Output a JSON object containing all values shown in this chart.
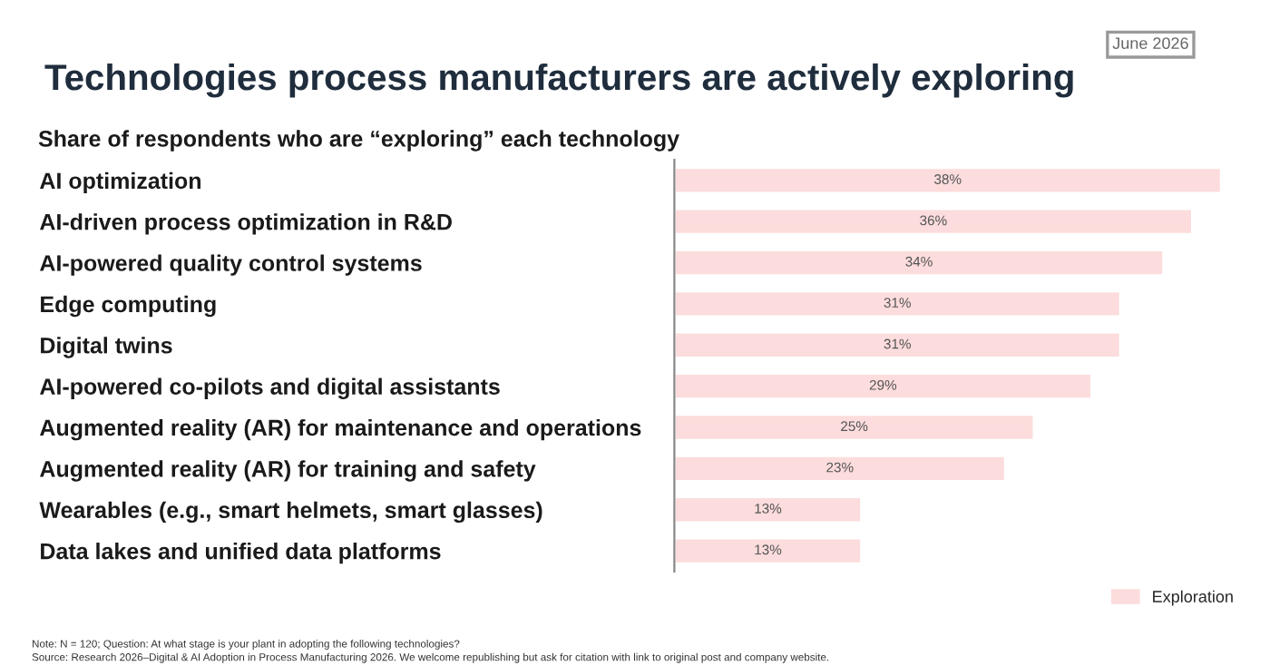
{
  "chart_data": {
    "type": "bar",
    "orientation": "horizontal",
    "title": "Technologies process manufacturers are actively exploring",
    "subtitle": "Share of respondents who are “exploring” each technology",
    "categories": [
      "AI optimization",
      "AI-driven process optimization in R&D",
      "AI-powered quality control systems",
      "Edge computing",
      "Digital twins",
      "AI-powered co-pilots and digital assistants",
      "Augmented reality (AR) for maintenance and operations",
      "Augmented reality (AR) for training and safety",
      "Wearables (e.g., smart helmets, smart glasses)",
      "Data lakes and unified data platforms"
    ],
    "series": [
      {
        "name": "Exploration",
        "color": "#fcdcdc",
        "values": [
          38,
          36,
          34,
          31,
          31,
          29,
          25,
          23,
          13,
          13
        ],
        "value_labels": [
          "38%",
          "36%",
          "34%",
          "31%",
          "31%",
          "29%",
          "25%",
          "23%",
          "13%",
          "13%"
        ]
      }
    ],
    "tick_labels": "y",
    "grid": false,
    "legend": "bottom right",
    "annotations": [
      "June 2026",
      "Note: N = 120; Question: At what stage is your plant in adopting the following technologies?",
      "Source: Research 2026–Digital & AI Adoption in Process Manufacturing 2026. We welcome republishing but ask for citation with link to original post and company website."
    ]
  }
}
